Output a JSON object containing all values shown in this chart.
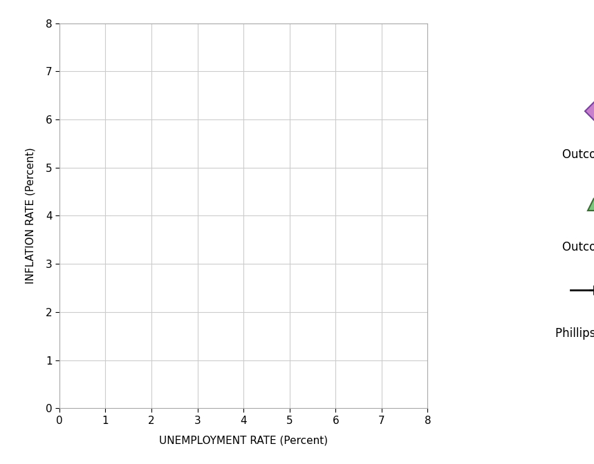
{
  "xlabel": "UNEMPLOYMENT RATE (Percent)",
  "ylabel": "INFLATION RATE (Percent)",
  "xlim": [
    0,
    8
  ],
  "ylim": [
    0,
    8
  ],
  "xticks": [
    0,
    1,
    2,
    3,
    4,
    5,
    6,
    7,
    8
  ],
  "yticks": [
    0,
    1,
    2,
    3,
    4,
    5,
    6,
    7,
    8
  ],
  "grid_color": "#cccccc",
  "background_color": "#ffffff",
  "outcome_a": {
    "marker": "D",
    "edge_color": "#7b3fa0",
    "face_color": "#c87fcc",
    "size": 130,
    "label": "Outcome A"
  },
  "outcome_b": {
    "marker": "^",
    "edge_color": "#3a6e35",
    "face_color": "#7dc87f",
    "size": 130,
    "label": "Outcome B"
  },
  "phillips_curve": {
    "label": "Phillips Curve",
    "line_color": "#111111",
    "linewidth": 2.0,
    "marker": "P",
    "marker_color": "#ffffff",
    "marker_edge_color": "#111111",
    "markersize": 12
  },
  "axis_label_fontsize": 11,
  "tick_fontsize": 11,
  "legend_fontsize": 12,
  "spine_color": "#aaaaaa",
  "legend_marker_fontsize": 18
}
